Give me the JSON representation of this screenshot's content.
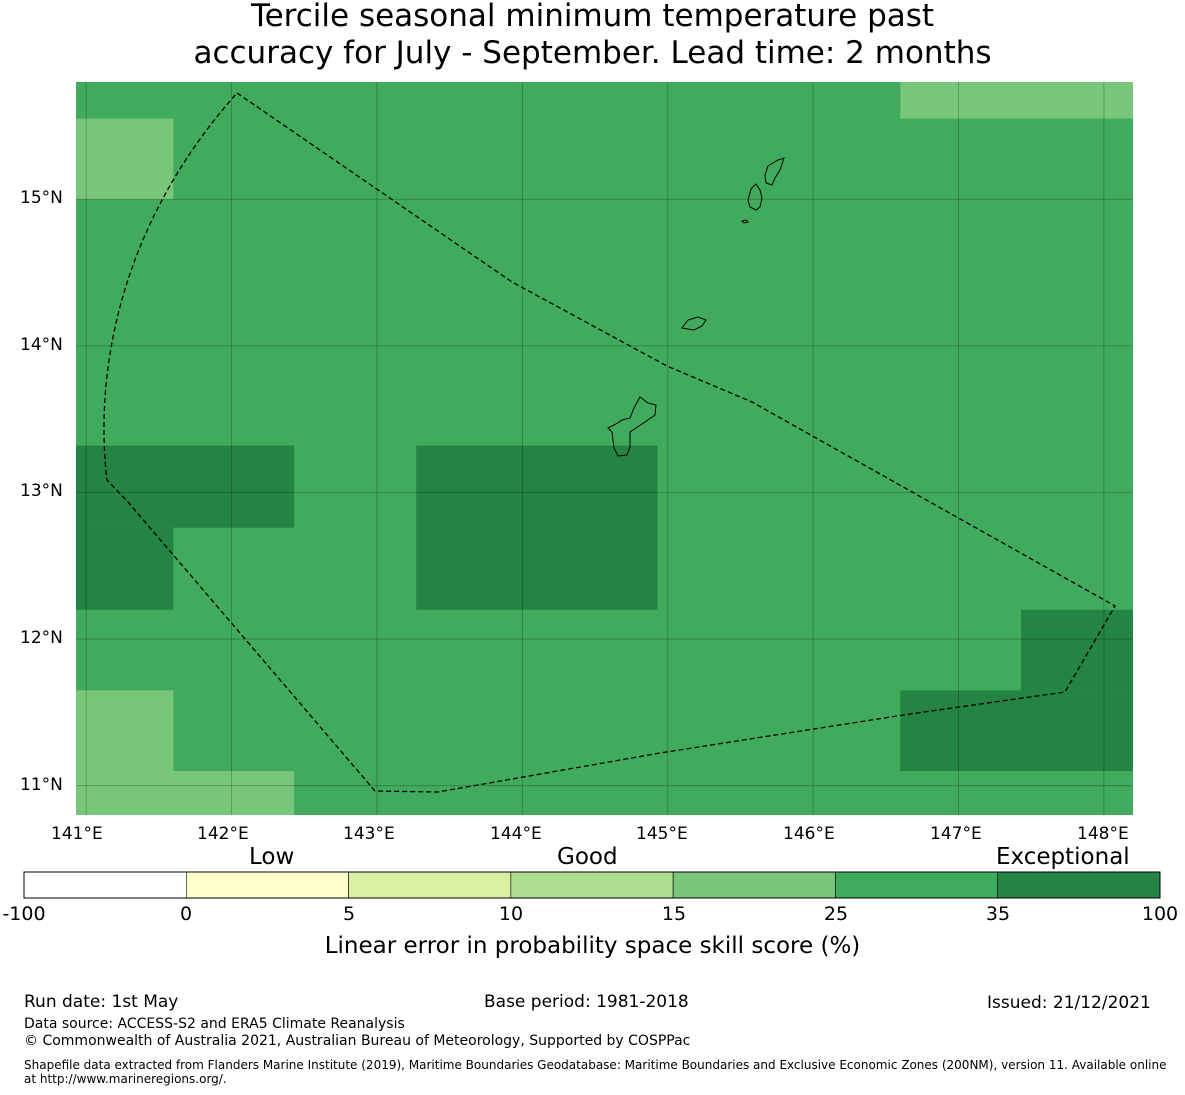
{
  "title": {
    "line1": "Tercile seasonal minimum temperature past",
    "line2": "accuracy for July - September. Lead time: 2 months"
  },
  "map": {
    "lat_labels": [
      "15°N",
      "14°N",
      "13°N",
      "12°N",
      "11°N"
    ],
    "lon_labels": [
      "141°E",
      "142°E",
      "143°E",
      "144°E",
      "145°E",
      "146°E",
      "147°E",
      "148°E"
    ],
    "background_color": "#41ab5d",
    "grid": true,
    "zones": [
      {
        "level": "15-25",
        "color": "#78c679",
        "lon": [
          140.93,
          141.6
        ],
        "lat": [
          15.0,
          15.55
        ]
      },
      {
        "level": "15-25",
        "color": "#78c679",
        "lon": [
          146.6,
          148.2
        ],
        "lat": [
          15.55,
          15.8
        ]
      },
      {
        "level": "35-100",
        "color": "#238443",
        "lon": [
          140.93,
          142.43
        ],
        "lat": [
          12.76,
          13.32
        ]
      },
      {
        "level": "35-100",
        "color": "#238443",
        "lon": [
          140.93,
          141.6
        ],
        "lat": [
          12.2,
          12.76
        ]
      },
      {
        "level": "35-100",
        "color": "#238443",
        "lon": [
          143.27,
          144.93
        ],
        "lat": [
          12.2,
          13.32
        ]
      },
      {
        "level": "35-100",
        "color": "#238443",
        "lon": [
          146.6,
          148.2
        ],
        "lat": [
          11.1,
          11.65
        ]
      },
      {
        "level": "35-100",
        "color": "#238443",
        "lon": [
          147.43,
          148.2
        ],
        "lat": [
          11.65,
          12.2
        ]
      },
      {
        "level": "15-25",
        "color": "#78c679",
        "lon": [
          140.93,
          141.6
        ],
        "lat": [
          11.1,
          11.65
        ]
      },
      {
        "level": "15-25",
        "color": "#78c679",
        "lon": [
          140.93,
          142.43
        ],
        "lat": [
          10.8,
          11.1
        ]
      }
    ]
  },
  "legend": {
    "categories": [
      "Low",
      "Good",
      "Exceptional"
    ],
    "ticks": [
      "-100",
      "0",
      "5",
      "10",
      "15",
      "25",
      "35",
      "100"
    ],
    "colors": [
      "#ffffff",
      "#ffffcc",
      "#d9f0a3",
      "#addd8e",
      "#78c679",
      "#41ab5d",
      "#238443"
    ],
    "label": "Linear error in probability space skill score (%)"
  },
  "footer": {
    "run_date": "Run date: 1st May",
    "base_period": "Base period: 1981-2018",
    "issued": "Issued: 21/12/2021",
    "data_source": "Data source: ACCESS-S2 and ERA5 Climate Reanalysis",
    "copyright": "© Commonwealth of Australia 2021, Australian Bureau of Meteorology, Supported by COSPPac",
    "shapefile_line1": "Shapefile data extracted from Flanders Marine Institute (2019), Maritime Boundaries Geodatabase: Maritime Boundaries and Exclusive Economic Zones (200NM), version 11. Available online",
    "shapefile_line2": "at http://www.marineregions.org/."
  }
}
